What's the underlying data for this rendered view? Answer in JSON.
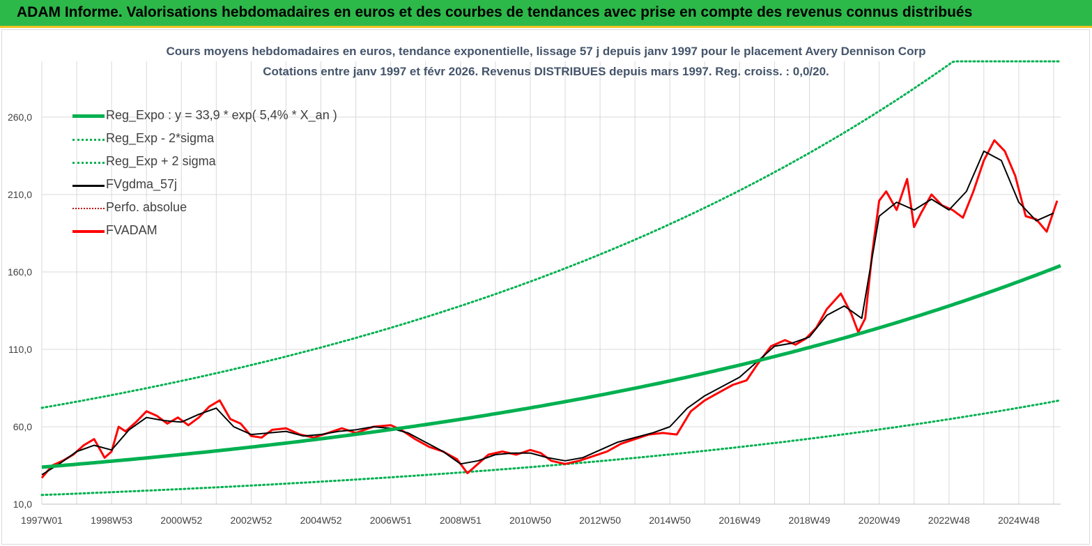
{
  "header": {
    "title": "ADAM Informe. Valorisations hebdomadaires en euros et des courbes de tendances avec prise en compte des revenus connus distribués"
  },
  "colors": {
    "header_bg": "#2db84a",
    "header_border": "#f0c020",
    "reg_expo": "#00b050",
    "fvgdma": "#000000",
    "fvadam": "#ff0000",
    "perfo": "#c00000",
    "grid": "#d9d9d9",
    "title_text": "#44546a"
  },
  "chart_data": {
    "type": "line",
    "title_line1": "Cours moyens hebdomadaires en euros, tendance exponentielle, lissage 57 j depuis janv 1997 pour le placement Avery Dennison Corp",
    "title_line2": "Cotations entre janv 1997 et févr 2026. Revenus DISTRIBUES depuis mars 1997. Reg. croiss. : 0,0/20.",
    "x_tick_labels": [
      "1997W01",
      "1998W53",
      "2000W52",
      "2002W52",
      "2004W52",
      "2006W51",
      "2008W51",
      "2010W50",
      "2012W50",
      "2014W50",
      "2016W49",
      "2018W49",
      "2020W49",
      "2022W48",
      "2024W48"
    ],
    "y_tick_labels": [
      "10,0",
      "60,0",
      "110,0",
      "160,0",
      "210,0",
      "260,0"
    ],
    "ylim": [
      10,
      296
    ],
    "xlim_years": [
      1997.0,
      2026.2
    ],
    "grid": true,
    "legend_position": "top-left",
    "legend": [
      {
        "key": "reg_expo",
        "label": "Reg_Expo : y = 33,9 * exp( 5,4% *  X_an )",
        "style": "thick-solid",
        "color": "#00b050"
      },
      {
        "key": "reg_minus",
        "label": "Reg_Exp - 2*sigma",
        "style": "dotted",
        "color": "#00b050"
      },
      {
        "key": "reg_plus",
        "label": "Reg_Exp + 2 sigma",
        "style": "dotted",
        "color": "#00b050"
      },
      {
        "key": "fvgdma",
        "label": "FVgdma_57j",
        "style": "solid",
        "color": "#000000"
      },
      {
        "key": "perfo",
        "label": "Perfo. absolue",
        "style": "dotted",
        "color": "#c00000"
      },
      {
        "key": "fvadam",
        "label": "FVADAM",
        "style": "thick-solid",
        "color": "#ff0000"
      }
    ],
    "regression": {
      "a": 33.9,
      "rate": 0.054,
      "sigma_factor_upper": 2.13,
      "sigma_factor_lower": 0.47,
      "cap": 296
    },
    "series_fvadam": {
      "x": [
        1997.0,
        1997.3,
        1997.6,
        1997.9,
        1998.2,
        1998.5,
        1998.8,
        1999.0,
        1999.2,
        1999.4,
        1999.7,
        2000.0,
        2000.3,
        2000.6,
        2000.9,
        2001.2,
        2001.5,
        2001.8,
        2002.1,
        2002.4,
        2002.7,
        2003.0,
        2003.3,
        2003.6,
        2004.0,
        2004.4,
        2004.8,
        2005.2,
        2005.6,
        2006.0,
        2006.5,
        2007.0,
        2007.3,
        2007.7,
        2008.1,
        2008.5,
        2008.9,
        2009.2,
        2009.5,
        2009.8,
        2010.2,
        2010.6,
        2011.0,
        2011.3,
        2011.6,
        2012.0,
        2012.4,
        2012.8,
        2013.2,
        2013.6,
        2014.0,
        2014.4,
        2014.8,
        2015.2,
        2015.6,
        2016.0,
        2016.4,
        2016.8,
        2017.2,
        2017.5,
        2017.9,
        2018.3,
        2018.6,
        2018.9,
        2019.2,
        2019.5,
        2019.9,
        2020.2,
        2020.4,
        2020.6,
        2020.8,
        2021.0,
        2021.2,
        2021.5,
        2021.8,
        2022.0,
        2022.2,
        2022.5,
        2022.8,
        2023.1,
        2023.4,
        2023.7,
        2024.0,
        2024.3,
        2024.6,
        2024.9,
        2025.2,
        2025.5,
        2025.8,
        2026.1
      ],
      "y": [
        27,
        35,
        38,
        42,
        48,
        52,
        40,
        44,
        60,
        57,
        63,
        70,
        67,
        62,
        66,
        61,
        66,
        73,
        77,
        65,
        62,
        54,
        53,
        58,
        59,
        55,
        53,
        56,
        59,
        56,
        60,
        61,
        58,
        52,
        47,
        44,
        39,
        30,
        36,
        42,
        44,
        42,
        45,
        43,
        38,
        36,
        38,
        41,
        44,
        49,
        52,
        55,
        56,
        55,
        70,
        77,
        82,
        87,
        90,
        100,
        112,
        116,
        113,
        117,
        124,
        136,
        146,
        133,
        121,
        130,
        172,
        206,
        212,
        200,
        220,
        189,
        198,
        210,
        203,
        200,
        195,
        212,
        232,
        245,
        238,
        222,
        196,
        194,
        186,
        206
      ]
    },
    "series_fvgdma": {
      "x": [
        1997.0,
        1997.5,
        1998.0,
        1998.5,
        1999.0,
        1999.5,
        2000.0,
        2000.5,
        2001.0,
        2001.5,
        2002.0,
        2002.5,
        2003.0,
        2003.5,
        2004.0,
        2004.5,
        2005.0,
        2005.5,
        2006.0,
        2006.5,
        2007.0,
        2007.5,
        2008.0,
        2008.5,
        2009.0,
        2009.5,
        2010.0,
        2010.5,
        2011.0,
        2011.5,
        2012.0,
        2012.5,
        2013.0,
        2013.5,
        2014.0,
        2014.5,
        2015.0,
        2015.5,
        2016.0,
        2016.5,
        2017.0,
        2017.5,
        2018.0,
        2018.5,
        2019.0,
        2019.5,
        2020.0,
        2020.5,
        2021.0,
        2021.5,
        2022.0,
        2022.5,
        2023.0,
        2023.5,
        2024.0,
        2024.5,
        2025.0,
        2025.5,
        2026.0
      ],
      "y": [
        29,
        36,
        44,
        48,
        45,
        58,
        66,
        64,
        63,
        68,
        72,
        60,
        55,
        56,
        57,
        54,
        55,
        57,
        58,
        60,
        59,
        56,
        50,
        44,
        36,
        38,
        42,
        43,
        43,
        40,
        38,
        40,
        45,
        50,
        53,
        56,
        60,
        72,
        80,
        86,
        92,
        102,
        112,
        114,
        118,
        132,
        138,
        130,
        196,
        205,
        200,
        207,
        200,
        212,
        238,
        232,
        205,
        193,
        198
      ]
    }
  }
}
